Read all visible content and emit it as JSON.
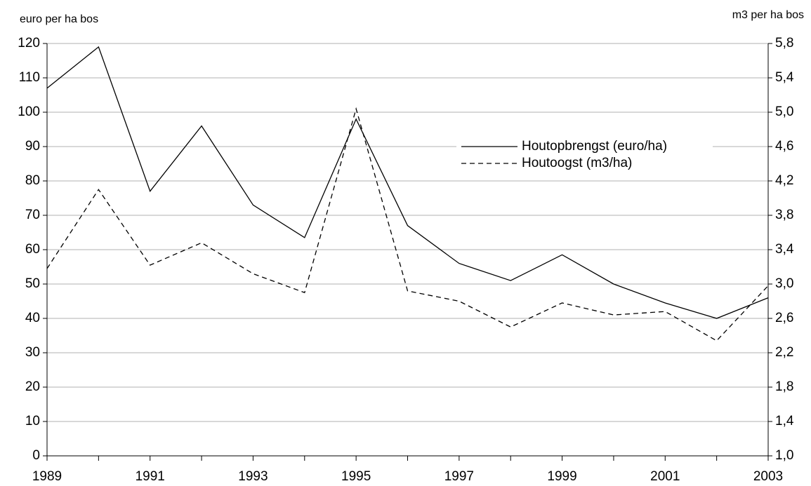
{
  "chart_data": {
    "type": "line",
    "ylabel": "euro per ha bos",
    "y2label": "m3 per ha bos",
    "x": [
      1989,
      1990,
      1991,
      1992,
      1993,
      1994,
      1995,
      1996,
      1997,
      1998,
      1999,
      2000,
      2001,
      2002,
      2003
    ],
    "xlim": [
      1989,
      2003
    ],
    "xticks": [
      1989,
      1991,
      1993,
      1995,
      1997,
      1999,
      2001,
      2003
    ],
    "ylim": [
      0,
      120
    ],
    "yticks": [
      0,
      10,
      20,
      30,
      40,
      50,
      60,
      70,
      80,
      90,
      100,
      110,
      120
    ],
    "y2lim": [
      1.0,
      5.8
    ],
    "y2ticks": [
      {
        "value": 1.0,
        "label": "1,0"
      },
      {
        "value": 1.4,
        "label": "1,4"
      },
      {
        "value": 1.8,
        "label": "1,8"
      },
      {
        "value": 2.2,
        "label": "2,2"
      },
      {
        "value": 2.6,
        "label": "2,6"
      },
      {
        "value": 3.0,
        "label": "3,0"
      },
      {
        "value": 3.4,
        "label": "3,4"
      },
      {
        "value": 3.8,
        "label": "3,8"
      },
      {
        "value": 4.2,
        "label": "4,2"
      },
      {
        "value": 4.6,
        "label": "4,6"
      },
      {
        "value": 5.0,
        "label": "5,0"
      },
      {
        "value": 5.4,
        "label": "5,4"
      },
      {
        "value": 5.8,
        "label": "5,8"
      }
    ],
    "grid": true,
    "series": [
      {
        "name": "Houtopbrengst (euro/ha)",
        "color": "#000000",
        "style": "solid",
        "values": [
          107,
          119,
          77,
          96,
          73,
          63.5,
          98,
          67,
          56,
          51,
          58.5,
          50,
          44.5,
          40,
          46
        ]
      },
      {
        "name": "Houtoogst (m3/ha)",
        "color": "#000000",
        "style": "dashed",
        "axis": "y2",
        "values": [
          3.18,
          4.1,
          3.22,
          3.48,
          3.12,
          2.9,
          5.04,
          2.92,
          2.8,
          2.5,
          2.78,
          2.64,
          2.68,
          2.34,
          2.98
        ]
      }
    ]
  }
}
